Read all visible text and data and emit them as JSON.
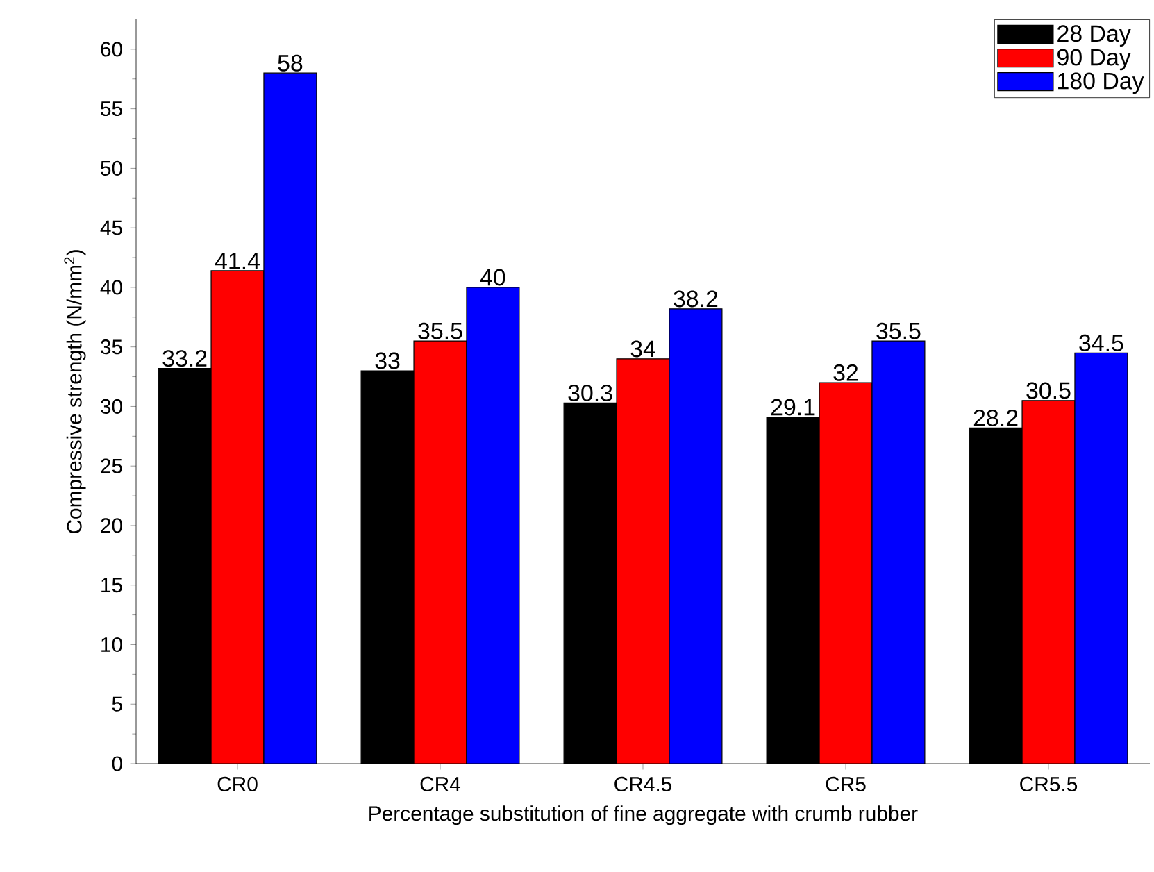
{
  "chart_data": {
    "type": "bar",
    "xlabel": "Percentage substitution of fine aggregate with crumb rubber",
    "ylabel": "Compressive strength (N/mm$^{2}$)",
    "categories": [
      "CR0",
      "CR4",
      "CR4.5",
      "CR5",
      "CR5.5"
    ],
    "series": [
      {
        "name": "28 Day",
        "color": "#000000",
        "values": [
          33.2,
          33,
          30.3,
          29.1,
          28.2
        ]
      },
      {
        "name": "90 Day",
        "color": "#ff0000",
        "values": [
          41.4,
          35.5,
          34,
          32,
          30.5
        ]
      },
      {
        "name": "180 Day",
        "color": "#0000ff",
        "values": [
          58,
          40,
          38.2,
          35.5,
          34.5
        ]
      }
    ],
    "ylim": [
      0,
      62.5
    ],
    "yticks": [
      0,
      5,
      10,
      15,
      20,
      25,
      30,
      35,
      40,
      45,
      50,
      55,
      60
    ],
    "data_labels": true,
    "legend": "top right"
  }
}
